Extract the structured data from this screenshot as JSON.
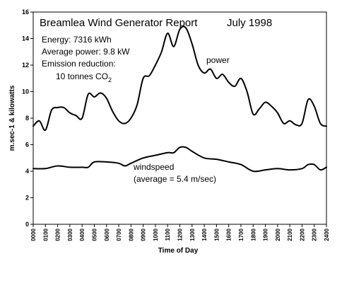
{
  "chart_data": {
    "type": "line",
    "title": "Breamlea Wind Generator Report",
    "title_date": "July 1998",
    "xlabel": "Time of Day",
    "ylabel": "m.sec-1 & kilowatts",
    "ylim": [
      0,
      16
    ],
    "yticks": [
      0,
      2,
      4,
      6,
      8,
      10,
      12,
      14,
      16
    ],
    "x_tick_labels": [
      "0000",
      "0100",
      "0200",
      "0300",
      "0400",
      "0500",
      "0600",
      "0700",
      "0800",
      "0900",
      "1000",
      "1100",
      "1200",
      "1300",
      "1400",
      "1500",
      "1600",
      "1700",
      "1800",
      "1900",
      "2000",
      "2100",
      "2200",
      "2300",
      "2400"
    ],
    "grid": false,
    "annotations": {
      "energy": "Energy: 7316 kWh",
      "average_power": "Average power: 9.8 kW",
      "emission_label": "Emission reduction:",
      "emission_value": "10 tonnes CO",
      "emission_sub": "2",
      "windspeed_avg": "(average = 5.4 m/sec)"
    },
    "series": [
      {
        "name": "power",
        "x": [
          0,
          0.5,
          1,
          1.5,
          2,
          2.5,
          3,
          3.5,
          4,
          4.5,
          5,
          5.5,
          6,
          6.5,
          7,
          7.5,
          8,
          8.5,
          9,
          9.5,
          10,
          10.5,
          11,
          11.5,
          12,
          12.5,
          13,
          13.5,
          14,
          14.5,
          15,
          15.5,
          16,
          16.5,
          17,
          17.5,
          18,
          18.5,
          19,
          19.5,
          20,
          20.5,
          21,
          21.5,
          22,
          22.5,
          23,
          23.5,
          24
        ],
        "values": [
          7.4,
          7.8,
          7.1,
          8.6,
          8.8,
          8.8,
          8.4,
          8.2,
          8.0,
          9.8,
          9.6,
          9.9,
          9.5,
          8.5,
          7.8,
          7.6,
          8.0,
          9.0,
          11.0,
          11.2,
          12.0,
          13.0,
          14.4,
          13.4,
          14.7,
          14.8,
          13.6,
          12.0,
          11.4,
          11.7,
          11.0,
          11.3,
          10.7,
          10.4,
          11.0,
          10.0,
          8.3,
          8.7,
          9.2,
          8.9,
          8.4,
          7.6,
          7.8,
          7.5,
          7.6,
          9.4,
          8.9,
          7.6,
          7.4
        ]
      },
      {
        "name": "windspeed",
        "x": [
          0,
          1,
          2,
          3,
          4,
          4.5,
          5,
          6,
          7,
          7.5,
          8,
          9,
          10,
          11,
          11.5,
          12,
          12.5,
          13,
          14,
          15,
          16,
          17,
          18,
          19,
          20,
          21,
          22,
          22.5,
          23,
          23.5,
          24
        ],
        "values": [
          4.2,
          4.2,
          4.4,
          4.3,
          4.3,
          4.3,
          4.7,
          4.7,
          4.6,
          4.4,
          4.6,
          5.0,
          5.2,
          5.4,
          5.4,
          5.8,
          5.8,
          5.5,
          5.0,
          4.9,
          4.7,
          4.5,
          4.0,
          4.1,
          4.2,
          4.1,
          4.2,
          4.5,
          4.5,
          4.1,
          4.3
        ]
      }
    ]
  }
}
